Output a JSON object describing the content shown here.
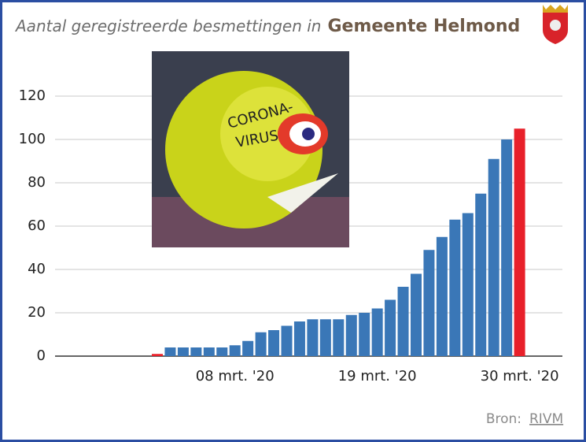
{
  "chart_data": {
    "type": "bar",
    "title": "Aantal geregistreerde besmettingen in",
    "title_emphasis": "Gemeente Helmond",
    "source_label": "Bron:",
    "source": "RIVM",
    "categories": [
      null,
      null,
      null,
      null,
      null,
      null,
      "08 mrt. '20",
      null,
      null,
      null,
      null,
      null,
      null,
      null,
      null,
      null,
      null,
      "19 mrt. '20",
      null,
      null,
      null,
      null,
      null,
      null,
      null,
      null,
      null,
      null,
      "30 mrt. '20"
    ],
    "values": [
      1,
      4,
      4,
      4,
      4,
      4,
      5,
      7,
      11,
      12,
      14,
      16,
      17,
      17,
      17,
      19,
      20,
      22,
      26,
      32,
      38,
      49,
      55,
      63,
      66,
      75,
      91,
      100,
      105
    ],
    "colors": [
      "#e8202a",
      "#3a77b7",
      "#3a77b7",
      "#3a77b7",
      "#3a77b7",
      "#3a77b7",
      "#3a77b7",
      "#3a77b7",
      "#3a77b7",
      "#3a77b7",
      "#3a77b7",
      "#3a77b7",
      "#3a77b7",
      "#3a77b7",
      "#3a77b7",
      "#3a77b7",
      "#3a77b7",
      "#3a77b7",
      "#3a77b7",
      "#3a77b7",
      "#3a77b7",
      "#3a77b7",
      "#3a77b7",
      "#3a77b7",
      "#3a77b7",
      "#3a77b7",
      "#3a77b7",
      "#3a77b7",
      "#e8202a"
    ],
    "ylim": [
      0,
      120
    ],
    "yticks": [
      0,
      20,
      40,
      60,
      80,
      100,
      120
    ],
    "grid": true
  }
}
